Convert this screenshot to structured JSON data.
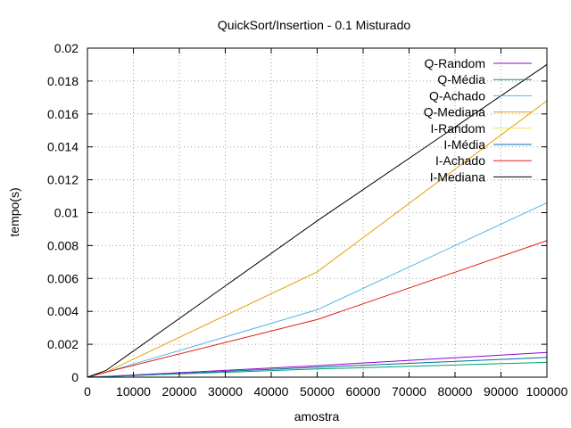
{
  "chart_data": {
    "type": "line",
    "title": "QuickSort/Insertion - 0.1 Misturado",
    "xlabel": "amostra",
    "ylabel": "tempo(s)",
    "xlim": [
      0,
      100000
    ],
    "ylim": [
      0,
      0.02
    ],
    "x_ticks": [
      0,
      10000,
      20000,
      30000,
      40000,
      50000,
      60000,
      70000,
      80000,
      90000,
      100000
    ],
    "x_tick_labels": [
      "0",
      "10000",
      "20000",
      "30000",
      "40000",
      "50000",
      "60000",
      "70000",
      "80000",
      "90000",
      "100000"
    ],
    "y_ticks": [
      0,
      0.002,
      0.004,
      0.006,
      0.008,
      0.01,
      0.012,
      0.014,
      0.016,
      0.018,
      0.02
    ],
    "y_tick_labels": [
      "0",
      "0.002",
      "0.004",
      "0.006",
      "0.008",
      "0.01",
      "0.012",
      "0.014",
      "0.016",
      "0.018",
      "0.02"
    ],
    "grid": true,
    "legend_position": "top-right",
    "x": [
      0,
      4000,
      50000,
      100000
    ],
    "series": [
      {
        "name": "Q-Random",
        "color": "#9400d3",
        "values": [
          0,
          5e-05,
          0.0007,
          0.0015
        ]
      },
      {
        "name": "Q-Média",
        "color": "#009e73",
        "values": [
          0,
          4e-05,
          0.0005,
          0.0009
        ]
      },
      {
        "name": "Q-Achado",
        "color": "#56b4e9",
        "values": [
          0,
          0.0003,
          0.0041,
          0.0106
        ]
      },
      {
        "name": "Q-Mediana",
        "color": "#e69f00",
        "values": [
          0,
          0.0003,
          0.0064,
          0.0168
        ]
      },
      {
        "name": "I-Random",
        "color": "#f0e442",
        "values": [
          0,
          3e-05,
          0.0006,
          0.0012
        ]
      },
      {
        "name": "I-Média",
        "color": "#0072b2",
        "values": [
          0,
          3e-05,
          0.0006,
          0.0012
        ]
      },
      {
        "name": "I-Achado",
        "color": "#e51e10",
        "values": [
          0,
          0.0003,
          0.0035,
          0.0083
        ]
      },
      {
        "name": "I-Mediana",
        "color": "#000000",
        "values": [
          0,
          0.0004,
          0.0095,
          0.019
        ]
      }
    ]
  }
}
